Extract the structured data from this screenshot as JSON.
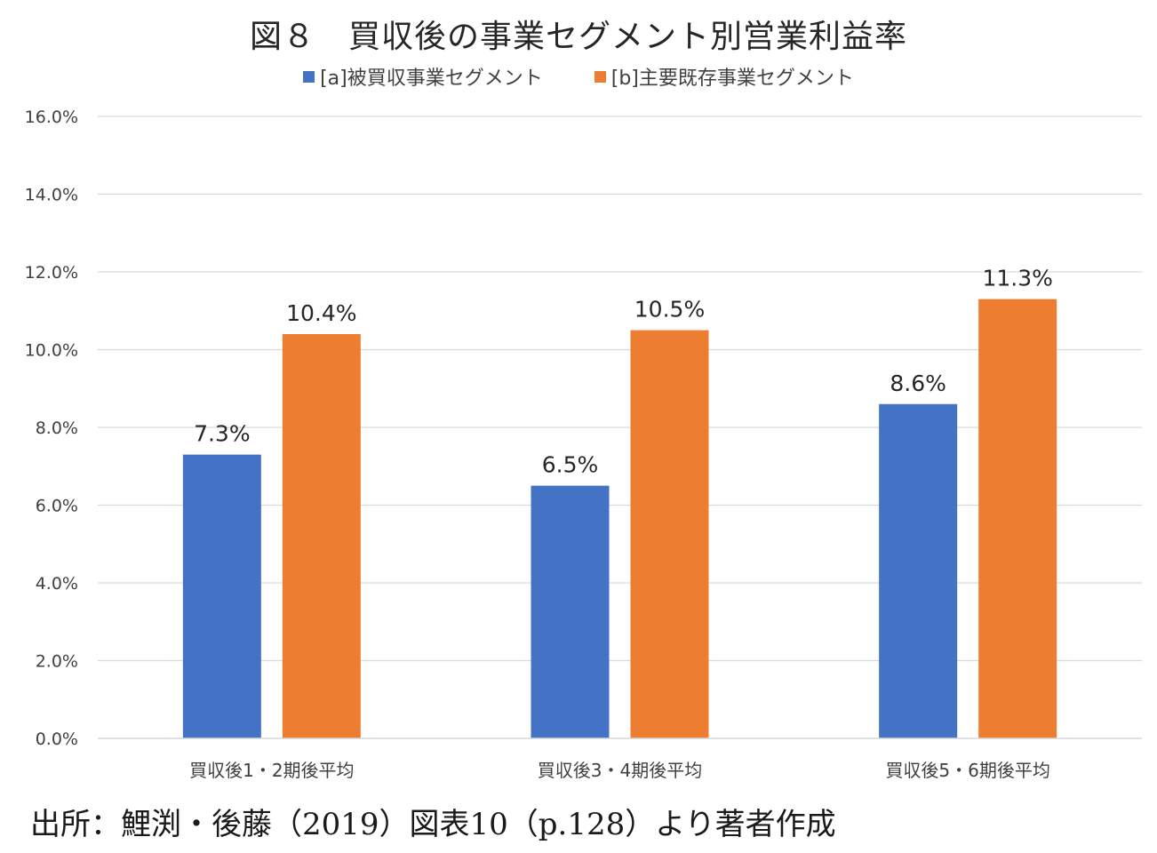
{
  "chart_data": {
    "type": "bar",
    "title": "図８　買収後の事業セグメント別営業利益率",
    "categories": [
      "買収後1・2期後平均",
      "買収後3・4期後平均",
      "買収後5・6期後平均"
    ],
    "series": [
      {
        "name": "[a]被買収事業セグメント",
        "color": "#4472C4",
        "values": [
          7.3,
          6.5,
          8.6
        ],
        "labels": [
          "7.3%",
          "6.5%",
          "8.6%"
        ]
      },
      {
        "name": "[b]主要既存事業セグメント",
        "color": "#ED7D31",
        "values": [
          10.4,
          10.5,
          11.3
        ],
        "labels": [
          "10.4%",
          "10.5%",
          "11.3%"
        ]
      }
    ],
    "ylim": [
      0,
      16
    ],
    "yticks": [
      "0.0%",
      "2.0%",
      "4.0%",
      "6.0%",
      "8.0%",
      "10.0%",
      "12.0%",
      "14.0%",
      "16.0%"
    ],
    "xlabel": "",
    "ylabel": "",
    "grid": true,
    "legend_position": "top"
  },
  "source_note": "出所：鯉渕・後藤（2019）図表10（p.128）より著者作成"
}
